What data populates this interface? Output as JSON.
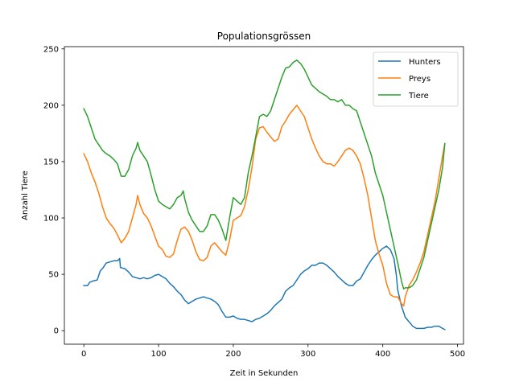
{
  "chart_data": {
    "type": "line",
    "title": "Populationsgrössen",
    "xlabel": "Zeit in Sekunden",
    "ylabel": "Anzahl Tiere",
    "xlim": [
      -26,
      508
    ],
    "ylim": [
      -12,
      252
    ],
    "xticks": [
      0,
      100,
      200,
      300,
      400,
      500
    ],
    "yticks": [
      0,
      50,
      100,
      150,
      200,
      250
    ],
    "grid": false,
    "legend_position": "top-right",
    "series": [
      {
        "name": "Hunters",
        "color": "#1f77b4",
        "points": [
          [
            0,
            40
          ],
          [
            5,
            40
          ],
          [
            8,
            43
          ],
          [
            12,
            44
          ],
          [
            18,
            45
          ],
          [
            22,
            53
          ],
          [
            26,
            56
          ],
          [
            30,
            60
          ],
          [
            35,
            61
          ],
          [
            40,
            62
          ],
          [
            45,
            62
          ],
          [
            48,
            64
          ],
          [
            49,
            56
          ],
          [
            55,
            55
          ],
          [
            60,
            52
          ],
          [
            65,
            48
          ],
          [
            70,
            47
          ],
          [
            75,
            46
          ],
          [
            80,
            47
          ],
          [
            85,
            46
          ],
          [
            90,
            47
          ],
          [
            95,
            49
          ],
          [
            100,
            50
          ],
          [
            105,
            48
          ],
          [
            110,
            46
          ],
          [
            115,
            42
          ],
          [
            120,
            39
          ],
          [
            125,
            35
          ],
          [
            130,
            32
          ],
          [
            135,
            27
          ],
          [
            140,
            24
          ],
          [
            145,
            26
          ],
          [
            150,
            28
          ],
          [
            155,
            29
          ],
          [
            160,
            30
          ],
          [
            165,
            29
          ],
          [
            170,
            28
          ],
          [
            175,
            26
          ],
          [
            180,
            23
          ],
          [
            185,
            17
          ],
          [
            190,
            12
          ],
          [
            195,
            12
          ],
          [
            200,
            13
          ],
          [
            205,
            11
          ],
          [
            210,
            10
          ],
          [
            215,
            10
          ],
          [
            220,
            9
          ],
          [
            225,
            8
          ],
          [
            230,
            10
          ],
          [
            235,
            11
          ],
          [
            240,
            13
          ],
          [
            245,
            15
          ],
          [
            250,
            18
          ],
          [
            255,
            22
          ],
          [
            260,
            25
          ],
          [
            265,
            28
          ],
          [
            270,
            35
          ],
          [
            275,
            38
          ],
          [
            280,
            40
          ],
          [
            285,
            45
          ],
          [
            290,
            50
          ],
          [
            295,
            53
          ],
          [
            300,
            55
          ],
          [
            305,
            58
          ],
          [
            310,
            58
          ],
          [
            315,
            60
          ],
          [
            320,
            60
          ],
          [
            325,
            58
          ],
          [
            330,
            55
          ],
          [
            335,
            52
          ],
          [
            340,
            48
          ],
          [
            345,
            45
          ],
          [
            350,
            42
          ],
          [
            355,
            40
          ],
          [
            360,
            40
          ],
          [
            365,
            44
          ],
          [
            370,
            46
          ],
          [
            375,
            52
          ],
          [
            380,
            58
          ],
          [
            385,
            63
          ],
          [
            390,
            67
          ],
          [
            395,
            70
          ],
          [
            400,
            73
          ],
          [
            405,
            75
          ],
          [
            410,
            72
          ],
          [
            415,
            64
          ],
          [
            418,
            50
          ],
          [
            420,
            36
          ],
          [
            425,
            22
          ],
          [
            430,
            12
          ],
          [
            435,
            8
          ],
          [
            440,
            4
          ],
          [
            445,
            2
          ],
          [
            450,
            2
          ],
          [
            455,
            2
          ],
          [
            460,
            3
          ],
          [
            465,
            3
          ],
          [
            470,
            4
          ],
          [
            475,
            4
          ],
          [
            480,
            2
          ],
          [
            483,
            1
          ]
        ]
      },
      {
        "name": "Preys",
        "color": "#ff7f0e",
        "points": [
          [
            0,
            157
          ],
          [
            5,
            150
          ],
          [
            10,
            140
          ],
          [
            15,
            132
          ],
          [
            20,
            122
          ],
          [
            25,
            110
          ],
          [
            30,
            100
          ],
          [
            35,
            95
          ],
          [
            40,
            91
          ],
          [
            45,
            85
          ],
          [
            50,
            78
          ],
          [
            55,
            82
          ],
          [
            60,
            88
          ],
          [
            65,
            100
          ],
          [
            70,
            112
          ],
          [
            72,
            120
          ],
          [
            75,
            112
          ],
          [
            80,
            104
          ],
          [
            85,
            100
          ],
          [
            90,
            93
          ],
          [
            95,
            84
          ],
          [
            100,
            75
          ],
          [
            105,
            72
          ],
          [
            110,
            66
          ],
          [
            115,
            65
          ],
          [
            120,
            68
          ],
          [
            125,
            80
          ],
          [
            130,
            90
          ],
          [
            135,
            92
          ],
          [
            140,
            88
          ],
          [
            145,
            80
          ],
          [
            150,
            70
          ],
          [
            155,
            63
          ],
          [
            160,
            62
          ],
          [
            165,
            65
          ],
          [
            170,
            75
          ],
          [
            175,
            78
          ],
          [
            180,
            74
          ],
          [
            185,
            70
          ],
          [
            190,
            67
          ],
          [
            195,
            80
          ],
          [
            200,
            98
          ],
          [
            205,
            100
          ],
          [
            210,
            102
          ],
          [
            215,
            110
          ],
          [
            220,
            125
          ],
          [
            225,
            145
          ],
          [
            230,
            170
          ],
          [
            235,
            180
          ],
          [
            240,
            181
          ],
          [
            245,
            176
          ],
          [
            250,
            172
          ],
          [
            255,
            168
          ],
          [
            260,
            170
          ],
          [
            265,
            181
          ],
          [
            270,
            186
          ],
          [
            275,
            192
          ],
          [
            280,
            196
          ],
          [
            285,
            200
          ],
          [
            290,
            195
          ],
          [
            295,
            190
          ],
          [
            300,
            180
          ],
          [
            305,
            170
          ],
          [
            310,
            162
          ],
          [
            315,
            155
          ],
          [
            320,
            150
          ],
          [
            325,
            148
          ],
          [
            330,
            148
          ],
          [
            335,
            146
          ],
          [
            340,
            150
          ],
          [
            345,
            155
          ],
          [
            350,
            160
          ],
          [
            355,
            162
          ],
          [
            360,
            160
          ],
          [
            365,
            155
          ],
          [
            370,
            148
          ],
          [
            375,
            135
          ],
          [
            380,
            120
          ],
          [
            385,
            100
          ],
          [
            390,
            80
          ],
          [
            395,
            68
          ],
          [
            400,
            58
          ],
          [
            405,
            42
          ],
          [
            410,
            32
          ],
          [
            415,
            30
          ],
          [
            420,
            30
          ],
          [
            425,
            24
          ],
          [
            428,
            22
          ],
          [
            430,
            30
          ],
          [
            435,
            40
          ],
          [
            440,
            45
          ],
          [
            445,
            52
          ],
          [
            450,
            60
          ],
          [
            455,
            70
          ],
          [
            460,
            85
          ],
          [
            465,
            100
          ],
          [
            470,
            115
          ],
          [
            475,
            135
          ],
          [
            480,
            155
          ],
          [
            483,
            166
          ]
        ]
      },
      {
        "name": "Tiere",
        "color": "#2ca02c",
        "points": [
          [
            0,
            197
          ],
          [
            5,
            190
          ],
          [
            10,
            180
          ],
          [
            15,
            170
          ],
          [
            20,
            165
          ],
          [
            25,
            160
          ],
          [
            30,
            157
          ],
          [
            35,
            155
          ],
          [
            40,
            152
          ],
          [
            45,
            148
          ],
          [
            50,
            137
          ],
          [
            55,
            137
          ],
          [
            60,
            143
          ],
          [
            65,
            155
          ],
          [
            70,
            162
          ],
          [
            72,
            167
          ],
          [
            75,
            160
          ],
          [
            80,
            155
          ],
          [
            85,
            150
          ],
          [
            90,
            138
          ],
          [
            95,
            125
          ],
          [
            100,
            115
          ],
          [
            105,
            112
          ],
          [
            110,
            110
          ],
          [
            115,
            108
          ],
          [
            120,
            112
          ],
          [
            125,
            118
          ],
          [
            130,
            120
          ],
          [
            133,
            124
          ],
          [
            135,
            117
          ],
          [
            140,
            105
          ],
          [
            145,
            98
          ],
          [
            150,
            93
          ],
          [
            155,
            88
          ],
          [
            160,
            88
          ],
          [
            165,
            93
          ],
          [
            170,
            103
          ],
          [
            175,
            103
          ],
          [
            180,
            98
          ],
          [
            185,
            90
          ],
          [
            190,
            80
          ],
          [
            195,
            100
          ],
          [
            200,
            118
          ],
          [
            205,
            115
          ],
          [
            210,
            112
          ],
          [
            215,
            118
          ],
          [
            220,
            140
          ],
          [
            225,
            155
          ],
          [
            230,
            172
          ],
          [
            235,
            190
          ],
          [
            240,
            192
          ],
          [
            245,
            190
          ],
          [
            250,
            195
          ],
          [
            255,
            205
          ],
          [
            260,
            215
          ],
          [
            265,
            225
          ],
          [
            270,
            233
          ],
          [
            275,
            234
          ],
          [
            280,
            238
          ],
          [
            285,
            240
          ],
          [
            290,
            237
          ],
          [
            295,
            232
          ],
          [
            300,
            225
          ],
          [
            305,
            218
          ],
          [
            310,
            215
          ],
          [
            315,
            212
          ],
          [
            320,
            210
          ],
          [
            325,
            208
          ],
          [
            330,
            205
          ],
          [
            335,
            205
          ],
          [
            340,
            203
          ],
          [
            345,
            205
          ],
          [
            350,
            200
          ],
          [
            355,
            200
          ],
          [
            360,
            197
          ],
          [
            365,
            195
          ],
          [
            370,
            185
          ],
          [
            375,
            175
          ],
          [
            380,
            165
          ],
          [
            385,
            155
          ],
          [
            390,
            140
          ],
          [
            395,
            130
          ],
          [
            400,
            120
          ],
          [
            405,
            105
          ],
          [
            410,
            90
          ],
          [
            415,
            75
          ],
          [
            420,
            60
          ],
          [
            425,
            44
          ],
          [
            428,
            37
          ],
          [
            430,
            38
          ],
          [
            435,
            38
          ],
          [
            440,
            40
          ],
          [
            445,
            45
          ],
          [
            450,
            55
          ],
          [
            455,
            65
          ],
          [
            460,
            80
          ],
          [
            465,
            95
          ],
          [
            470,
            110
          ],
          [
            475,
            125
          ],
          [
            480,
            145
          ],
          [
            483,
            166
          ]
        ]
      }
    ]
  }
}
